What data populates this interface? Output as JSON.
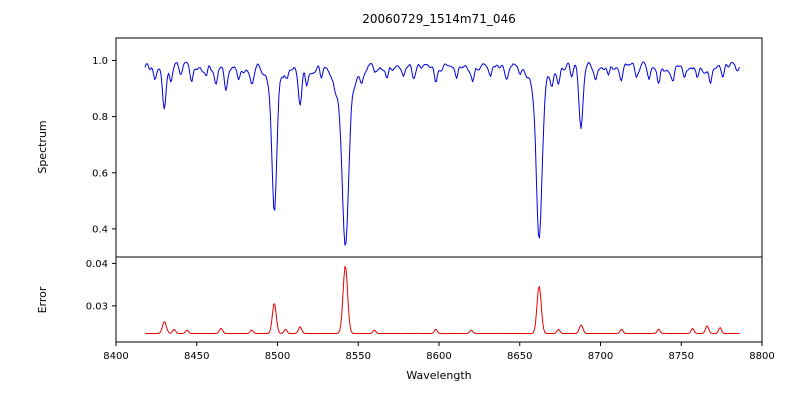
{
  "chart_data": {
    "type": "line",
    "title": "20060729_1514m71_046",
    "xlabel": "Wavelength",
    "layout": "two stacked panels sharing x axis, grid off, no legend",
    "x_range": [
      8400,
      8800
    ],
    "x_data_range": [
      8418,
      8786
    ],
    "x_ticks": [
      8400,
      8450,
      8500,
      8550,
      8600,
      8650,
      8700,
      8750,
      8800
    ],
    "x_tick_labels": [
      "8400",
      "8450",
      "8500",
      "8550",
      "8600",
      "8650",
      "8700",
      "8750",
      "8800"
    ],
    "background_color": "#ffffff",
    "axis_color": "#000000",
    "panels": [
      {
        "ylabel": "Spectrum",
        "color": "#0000e0",
        "ylim": [
          0.3,
          1.08
        ],
        "yticks": [
          0.4,
          0.6,
          0.8,
          1.0
        ],
        "ytick_labels": [
          "0.4",
          "0.6",
          "0.8",
          "1.0"
        ],
        "continuum": 0.975,
        "feature_sign": -1,
        "noise_amp": 0.08,
        "noise_seed": 1514,
        "features": [
          {
            "c": 8424,
            "a": 0.035,
            "s": 0.9
          },
          {
            "c": 8430,
            "a": 0.16,
            "s": 1.1
          },
          {
            "c": 8434,
            "a": 0.05,
            "s": 0.8
          },
          {
            "c": 8440,
            "a": 0.04,
            "s": 0.9
          },
          {
            "c": 8447,
            "a": 0.05,
            "s": 0.9
          },
          {
            "c": 8456,
            "a": 0.04,
            "s": 0.8
          },
          {
            "c": 8462,
            "a": 0.05,
            "s": 0.9
          },
          {
            "c": 8468,
            "a": 0.06,
            "s": 0.9
          },
          {
            "c": 8476,
            "a": 0.04,
            "s": 0.8
          },
          {
            "c": 8484,
            "a": 0.05,
            "s": 0.9
          },
          {
            "c": 8498,
            "a": 0.44,
            "s": 1.5
          },
          {
            "c": 8498,
            "a": 0.06,
            "s": 4.0
          },
          {
            "c": 8506,
            "a": 0.04,
            "s": 0.8
          },
          {
            "c": 8514,
            "a": 0.12,
            "s": 1.0
          },
          {
            "c": 8518,
            "a": 0.05,
            "s": 0.8
          },
          {
            "c": 8527,
            "a": 0.04,
            "s": 0.8
          },
          {
            "c": 8536,
            "a": 0.04,
            "s": 0.9
          },
          {
            "c": 8542,
            "a": 0.56,
            "s": 1.9
          },
          {
            "c": 8542,
            "a": 0.09,
            "s": 5.5
          },
          {
            "c": 8552,
            "a": 0.04,
            "s": 0.9
          },
          {
            "c": 8560,
            "a": 0.03,
            "s": 0.8
          },
          {
            "c": 8568,
            "a": 0.04,
            "s": 0.8
          },
          {
            "c": 8578,
            "a": 0.03,
            "s": 0.8
          },
          {
            "c": 8584,
            "a": 0.04,
            "s": 0.9
          },
          {
            "c": 8598,
            "a": 0.06,
            "s": 0.9
          },
          {
            "c": 8611,
            "a": 0.04,
            "s": 0.8
          },
          {
            "c": 8621,
            "a": 0.04,
            "s": 0.8
          },
          {
            "c": 8632,
            "a": 0.03,
            "s": 0.8
          },
          {
            "c": 8642,
            "a": 0.04,
            "s": 0.9
          },
          {
            "c": 8650,
            "a": 0.03,
            "s": 0.8
          },
          {
            "c": 8662,
            "a": 0.53,
            "s": 1.7
          },
          {
            "c": 8662,
            "a": 0.08,
            "s": 4.5
          },
          {
            "c": 8670,
            "a": 0.05,
            "s": 0.8
          },
          {
            "c": 8674,
            "a": 0.06,
            "s": 0.9
          },
          {
            "c": 8682,
            "a": 0.04,
            "s": 0.8
          },
          {
            "c": 8688,
            "a": 0.21,
            "s": 1.2
          },
          {
            "c": 8697,
            "a": 0.04,
            "s": 0.8
          },
          {
            "c": 8705,
            "a": 0.04,
            "s": 0.8
          },
          {
            "c": 8713,
            "a": 0.05,
            "s": 0.9
          },
          {
            "c": 8722,
            "a": 0.04,
            "s": 0.8
          },
          {
            "c": 8730,
            "a": 0.04,
            "s": 0.8
          },
          {
            "c": 8736,
            "a": 0.06,
            "s": 0.9
          },
          {
            "c": 8745,
            "a": 0.04,
            "s": 0.8
          },
          {
            "c": 8752,
            "a": 0.04,
            "s": 0.8
          },
          {
            "c": 8760,
            "a": 0.05,
            "s": 0.9
          },
          {
            "c": 8768,
            "a": 0.05,
            "s": 0.8
          },
          {
            "c": 8776,
            "a": 0.04,
            "s": 0.8
          }
        ]
      },
      {
        "ylabel": "Error",
        "color": "#e80000",
        "ylim": [
          0.0215,
          0.0415
        ],
        "yticks": [
          0.03,
          0.04
        ],
        "ytick_labels": [
          "0.03",
          "0.04"
        ],
        "continuum": 0.0235,
        "feature_sign": 1,
        "noise_amp": 0.003,
        "noise_seed": 46,
        "features": [
          {
            "c": 8430,
            "a": 0.0028,
            "s": 1.2
          },
          {
            "c": 8436,
            "a": 0.001,
            "s": 0.9
          },
          {
            "c": 8444,
            "a": 0.0008,
            "s": 0.9
          },
          {
            "c": 8465,
            "a": 0.0012,
            "s": 1.0
          },
          {
            "c": 8484,
            "a": 0.0008,
            "s": 0.9
          },
          {
            "c": 8498,
            "a": 0.0072,
            "s": 1.2
          },
          {
            "c": 8505,
            "a": 0.001,
            "s": 0.9
          },
          {
            "c": 8514,
            "a": 0.0016,
            "s": 1.0
          },
          {
            "c": 8542,
            "a": 0.016,
            "s": 1.4
          },
          {
            "c": 8560,
            "a": 0.0008,
            "s": 0.9
          },
          {
            "c": 8598,
            "a": 0.001,
            "s": 0.9
          },
          {
            "c": 8620,
            "a": 0.0008,
            "s": 0.9
          },
          {
            "c": 8662,
            "a": 0.0112,
            "s": 1.3
          },
          {
            "c": 8674,
            "a": 0.001,
            "s": 0.9
          },
          {
            "c": 8688,
            "a": 0.002,
            "s": 1.1
          },
          {
            "c": 8713,
            "a": 0.001,
            "s": 0.9
          },
          {
            "c": 8736,
            "a": 0.001,
            "s": 0.9
          },
          {
            "c": 8757,
            "a": 0.0012,
            "s": 0.9
          },
          {
            "c": 8766,
            "a": 0.0018,
            "s": 1.0
          },
          {
            "c": 8774,
            "a": 0.0014,
            "s": 0.9
          }
        ]
      }
    ]
  }
}
